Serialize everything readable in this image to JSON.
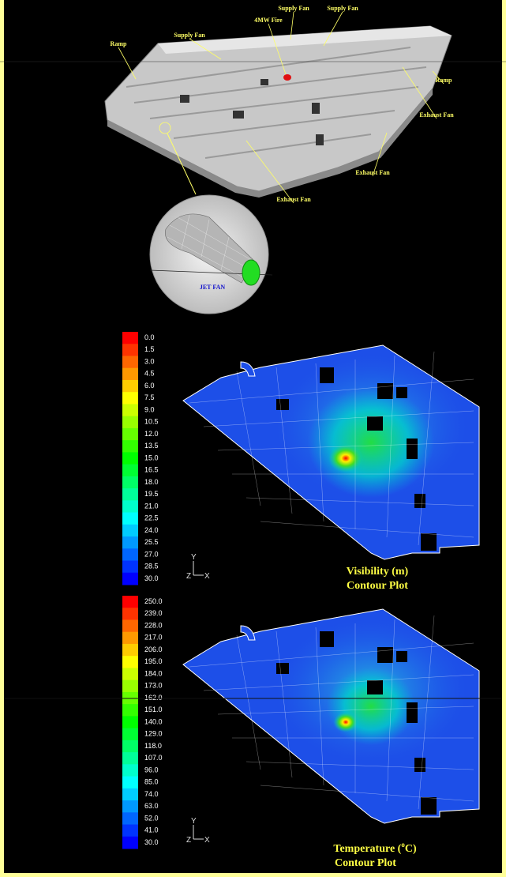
{
  "model_3d": {
    "labels": [
      "Ramp",
      "Supply Fan",
      "4MW Fire",
      "Supply Fan",
      "Supply Fan",
      "Ramp",
      "Exhaust Fan",
      "Exhaust Fan",
      "Exhaust Fan"
    ],
    "inset_label": "JET FAN"
  },
  "visibility_plot": {
    "legend": [
      "0.0",
      "1.5",
      "3.0",
      "4.5",
      "6.0",
      "7.5",
      "9.0",
      "10.5",
      "12.0",
      "13.5",
      "15.0",
      "16.5",
      "18.0",
      "19.5",
      "21.0",
      "22.5",
      "24.0",
      "25.5",
      "27.0",
      "28.5",
      "30.0"
    ],
    "title": "Visibility (m)",
    "subtitle": "Contour Plot",
    "axes": [
      "Y",
      "Z",
      "X"
    ]
  },
  "temperature_plot": {
    "legend": [
      "250.0",
      "239.0",
      "228.0",
      "217.0",
      "206.0",
      "195.0",
      "184.0",
      "173.0",
      "162.0",
      "151.0",
      "140.0",
      "129.0",
      "118.0",
      "107.0",
      "96.0",
      "85.0",
      "74.0",
      "63.0",
      "52.0",
      "41.0",
      "30.0"
    ],
    "title_parts": [
      "Temperature (",
      "o",
      "C)"
    ],
    "subtitle": "Contour Plot",
    "axes": [
      "Y",
      "Z",
      "X"
    ]
  }
}
